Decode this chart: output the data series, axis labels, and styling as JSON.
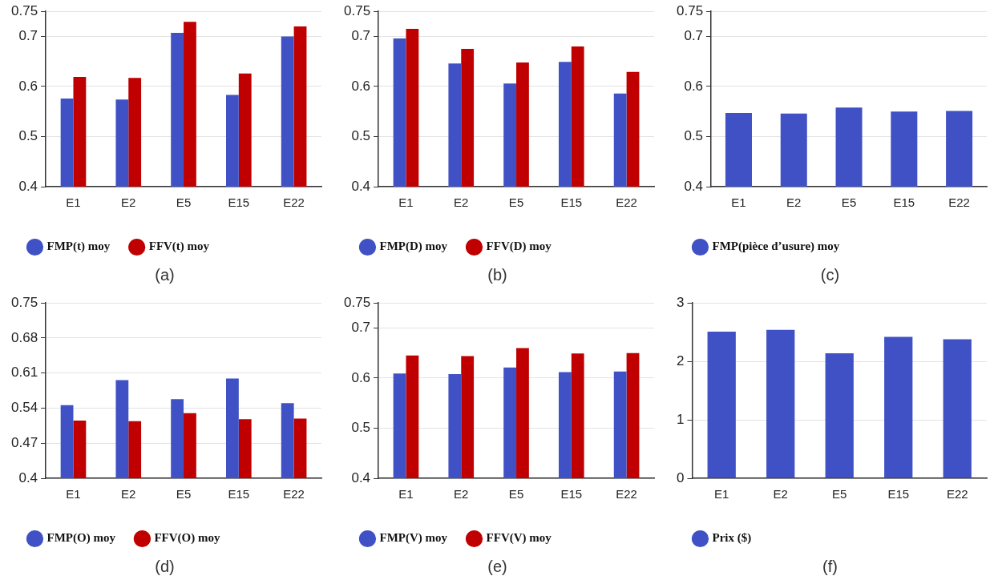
{
  "chart_data": [
    {
      "type": "bar",
      "title": "(a)",
      "categories": [
        "E1",
        "E2",
        "E5",
        "E15",
        "E22"
      ],
      "ylim": [
        0.4,
        0.75
      ],
      "yticks": [
        0.4,
        0.5,
        0.6,
        0.7,
        0.75
      ],
      "grid": "y",
      "legend": "bottom",
      "series": [
        {
          "name": "FMP(t) moy",
          "color": "#3f51c4",
          "values": [
            0.576,
            0.574,
            0.707,
            0.583,
            0.7
          ]
        },
        {
          "name": "FFV(t) moy",
          "color": "#c00000",
          "values": [
            0.619,
            0.617,
            0.729,
            0.626,
            0.72
          ]
        }
      ]
    },
    {
      "type": "bar",
      "title": "(b)",
      "categories": [
        "E1",
        "E2",
        "E5",
        "E15",
        "E22"
      ],
      "ylim": [
        0.4,
        0.75
      ],
      "yticks": [
        0.4,
        0.5,
        0.6,
        0.7,
        0.75
      ],
      "grid": "y",
      "legend": "bottom",
      "series": [
        {
          "name": "FMP(D) moy",
          "color": "#3f51c4",
          "values": [
            0.696,
            0.646,
            0.606,
            0.649,
            0.586
          ]
        },
        {
          "name": "FFV(D) moy",
          "color": "#c00000",
          "values": [
            0.715,
            0.675,
            0.648,
            0.68,
            0.629
          ]
        }
      ]
    },
    {
      "type": "bar",
      "title": "(c)",
      "categories": [
        "E1",
        "E2",
        "E5",
        "E15",
        "E22"
      ],
      "ylim": [
        0.4,
        0.75
      ],
      "yticks": [
        0.4,
        0.5,
        0.6,
        0.7,
        0.75
      ],
      "grid": "y",
      "legend": "bottom",
      "series": [
        {
          "name": "FMP(pièce d’usure) moy",
          "color": "#3f51c4",
          "values": [
            0.547,
            0.546,
            0.558,
            0.55,
            0.551
          ]
        }
      ]
    },
    {
      "type": "bar",
      "title": "(d)",
      "categories": [
        "E1",
        "E2",
        "E5",
        "E15",
        "E22"
      ],
      "ylim": [
        0.4,
        0.75
      ],
      "yticks": [
        0.4,
        0.47,
        0.54,
        0.61,
        0.68,
        0.75
      ],
      "grid": "y",
      "legend": "bottom",
      "series": [
        {
          "name": "FMP(O) moy",
          "color": "#3f51c4",
          "values": [
            0.546,
            0.596,
            0.558,
            0.599,
            0.55
          ]
        },
        {
          "name": "FFV(O) moy",
          "color": "#c00000",
          "values": [
            0.515,
            0.514,
            0.53,
            0.518,
            0.519
          ]
        }
      ]
    },
    {
      "type": "bar",
      "title": "(e)",
      "categories": [
        "E1",
        "E2",
        "E5",
        "E15",
        "E22"
      ],
      "ylim": [
        0.4,
        0.75
      ],
      "yticks": [
        0.4,
        0.5,
        0.6,
        0.7,
        0.75
      ],
      "grid": "y",
      "legend": "bottom",
      "series": [
        {
          "name": "FMP(V) moy",
          "color": "#3f51c4",
          "values": [
            0.609,
            0.608,
            0.621,
            0.612,
            0.613
          ]
        },
        {
          "name": "FFV(V) moy",
          "color": "#c00000",
          "values": [
            0.645,
            0.644,
            0.66,
            0.649,
            0.65
          ]
        }
      ]
    },
    {
      "type": "bar",
      "title": "(f)",
      "categories": [
        "E1",
        "E2",
        "E5",
        "E15",
        "E22"
      ],
      "ylim": [
        0,
        3
      ],
      "yticks": [
        0,
        1,
        2,
        3
      ],
      "grid": "y",
      "legend": "bottom",
      "series": [
        {
          "name": "Prix ($)",
          "color": "#3f51c4",
          "values": [
            2.51,
            2.54,
            2.14,
            2.42,
            2.38
          ]
        }
      ]
    }
  ]
}
